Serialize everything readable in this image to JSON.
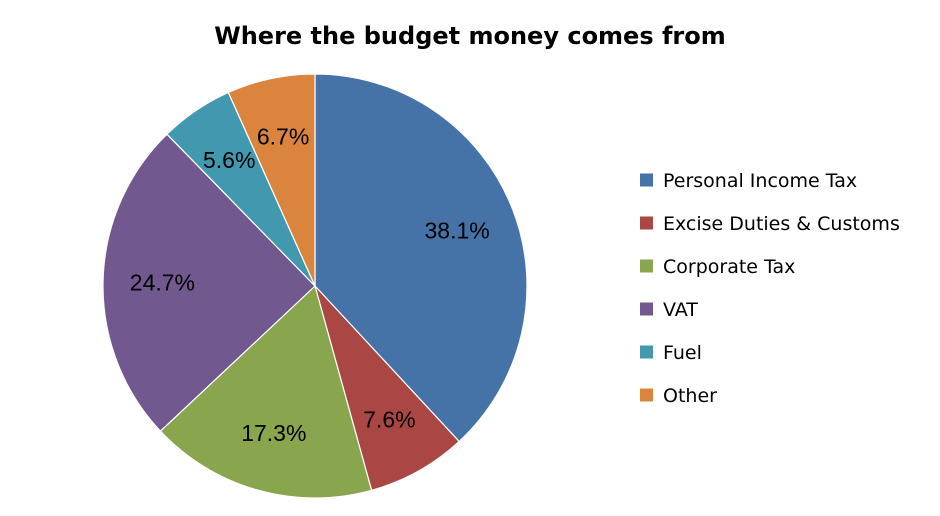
{
  "chart_data": {
    "type": "pie",
    "title": "Where the budget money comes from",
    "slices": [
      {
        "name": "Personal Income Tax",
        "value": 38.1,
        "label": "38.1%",
        "color": "#4572A7"
      },
      {
        "name": "Excise Duties & Customs",
        "value": 7.6,
        "label": "7.6%",
        "color": "#AA4643"
      },
      {
        "name": "Corporate Tax",
        "value": 17.3,
        "label": "17.3%",
        "color": "#89A54E"
      },
      {
        "name": "VAT",
        "value": 24.7,
        "label": "24.7%",
        "color": "#71588F"
      },
      {
        "name": "Fuel",
        "value": 5.6,
        "label": "5.6%",
        "color": "#4198AF"
      },
      {
        "name": "Other",
        "value": 6.7,
        "label": "6.7%",
        "color": "#DB843D"
      }
    ],
    "start_angle": "12 o'clock",
    "direction": "clockwise",
    "legend_position": "right"
  }
}
